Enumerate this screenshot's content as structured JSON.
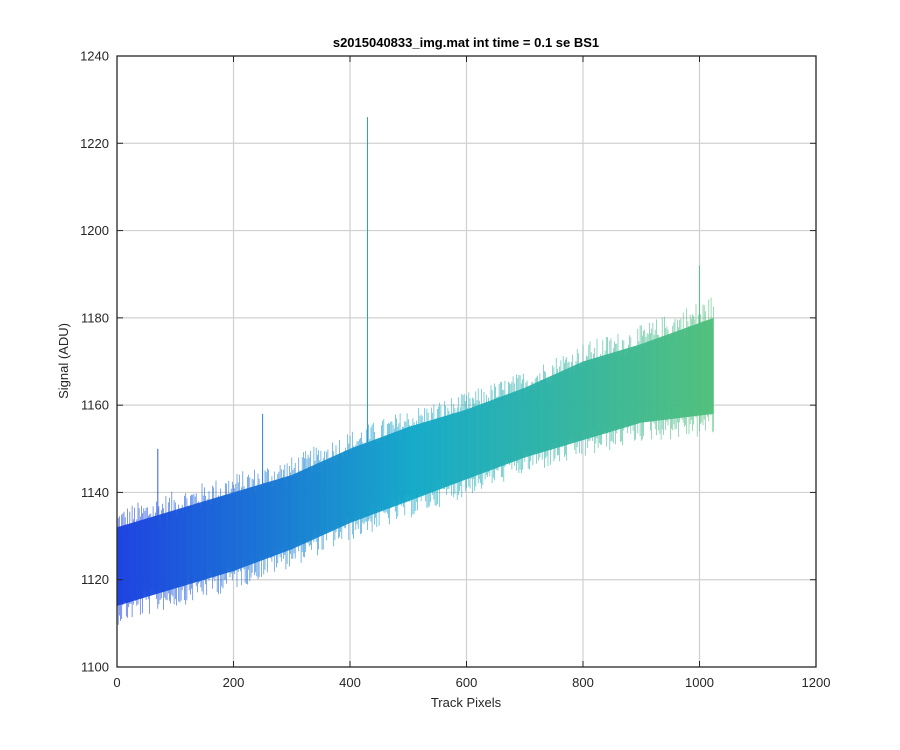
{
  "chart_data": {
    "type": "area",
    "title": "s2015040833_img.mat int time = 0.1 se   BS1",
    "xlabel": "Track Pixels",
    "ylabel": "Signal (ADU)",
    "xlim": [
      0,
      1200
    ],
    "ylim": [
      1100,
      1240
    ],
    "xticks": [
      "0",
      "200",
      "400",
      "600",
      "800",
      "1000",
      "1200"
    ],
    "yticks": [
      "1100",
      "1120",
      "1140",
      "1160",
      "1180",
      "1200",
      "1220",
      "1240"
    ],
    "grid": true,
    "data_x_range": [
      0,
      1024
    ],
    "colors": {
      "start": "#1a3fe0",
      "middle": "#12a9c8",
      "end": "#4fbf7a"
    },
    "series": [
      {
        "x": [
          0,
          100,
          200,
          300,
          400,
          500,
          600,
          700,
          800,
          900,
          1024
        ],
        "upper": [
          1132,
          1136,
          1140,
          1144,
          1150,
          1155,
          1159,
          1164,
          1170,
          1174,
          1180
        ],
        "lower": [
          1114,
          1118,
          1122,
          1127,
          1133,
          1138,
          1143,
          1148,
          1152,
          1156,
          1158
        ]
      }
    ],
    "spikes": [
      {
        "x": 430,
        "y": 1226
      },
      {
        "x": 70,
        "y": 1150
      },
      {
        "x": 250,
        "y": 1158
      },
      {
        "x": 1000,
        "y": 1192
      }
    ]
  }
}
